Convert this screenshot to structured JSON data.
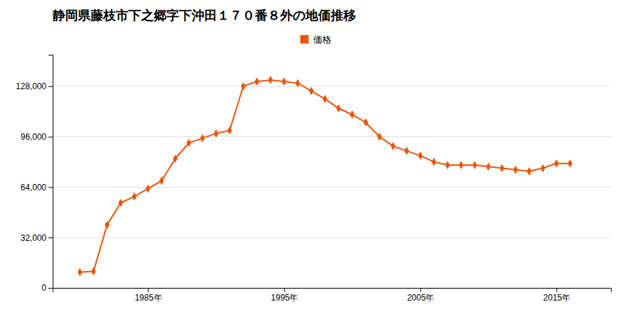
{
  "chart_data": {
    "type": "line",
    "title": "静岡県藤枝市下之郷字下沖田１７０番８外の地価推移",
    "x": [
      1980,
      1981,
      1982,
      1983,
      1984,
      1985,
      1986,
      1987,
      1988,
      1989,
      1990,
      1991,
      1992,
      1993,
      1994,
      1995,
      1996,
      1997,
      1998,
      1999,
      2000,
      2001,
      2002,
      2003,
      2004,
      2005,
      2006,
      2007,
      2008,
      2009,
      2010,
      2011,
      2012,
      2013,
      2014,
      2015,
      2016
    ],
    "series": [
      {
        "name": "価格",
        "color": "#E8560A",
        "marker": "diamond",
        "values": [
          10000,
          10500,
          40000,
          54000,
          58000,
          63000,
          68000,
          82000,
          92000,
          95000,
          98000,
          100000,
          128000,
          131000,
          132000,
          131000,
          130000,
          125000,
          120000,
          114000,
          110000,
          105000,
          96000,
          90000,
          87000,
          84000,
          80000,
          78000,
          78000,
          78000,
          77000,
          76000,
          75000,
          74000,
          76000,
          79000,
          79000
        ]
      }
    ],
    "xlim": [
      1978,
      2019
    ],
    "xticks": [
      {
        "value": 1985,
        "label": "1985年"
      },
      {
        "value": 1995,
        "label": "1995年"
      },
      {
        "value": 2005,
        "label": "2005年"
      },
      {
        "value": 2015,
        "label": "2015年"
      }
    ],
    "ylim": [
      0,
      148000
    ],
    "yticks": [
      0,
      {
        "value": 32000,
        "label": "32,000"
      },
      {
        "value": 64000,
        "label": "64,000"
      },
      {
        "value": 96000,
        "label": "96,000"
      },
      {
        "value": 128000,
        "label": "128,000"
      }
    ],
    "grid": true,
    "legend": "top"
  }
}
